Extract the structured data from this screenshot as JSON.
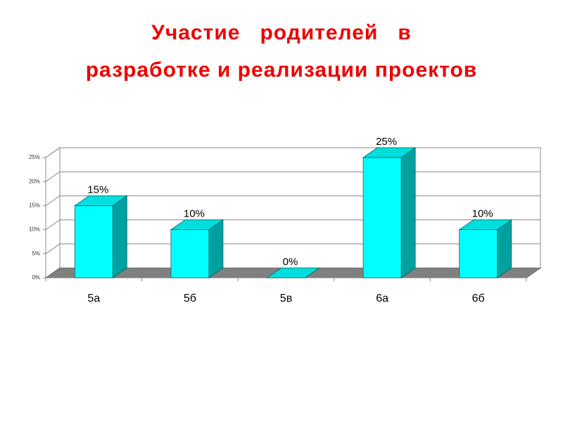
{
  "chart_data": {
    "type": "bar3d",
    "title": [
      "Участие   родителей   в",
      "разработке и реализации проектов"
    ],
    "categories": [
      "5а",
      "5б",
      "5в",
      "6а",
      "6б"
    ],
    "values": [
      15,
      10,
      0,
      25,
      10
    ],
    "value_labels": [
      "15%",
      "10%",
      "0%",
      "25%",
      "10%"
    ],
    "color": "#00ffff",
    "ylim": [
      0,
      25
    ],
    "yticks": [
      {
        "value": 0,
        "label": "0%"
      },
      {
        "value": 5,
        "label": "5%"
      },
      {
        "value": 10,
        "label": "10%"
      },
      {
        "value": 15,
        "label": "15%"
      },
      {
        "value": 20,
        "label": "20%"
      },
      {
        "value": 25,
        "label": "25%"
      }
    ],
    "grid": true
  }
}
